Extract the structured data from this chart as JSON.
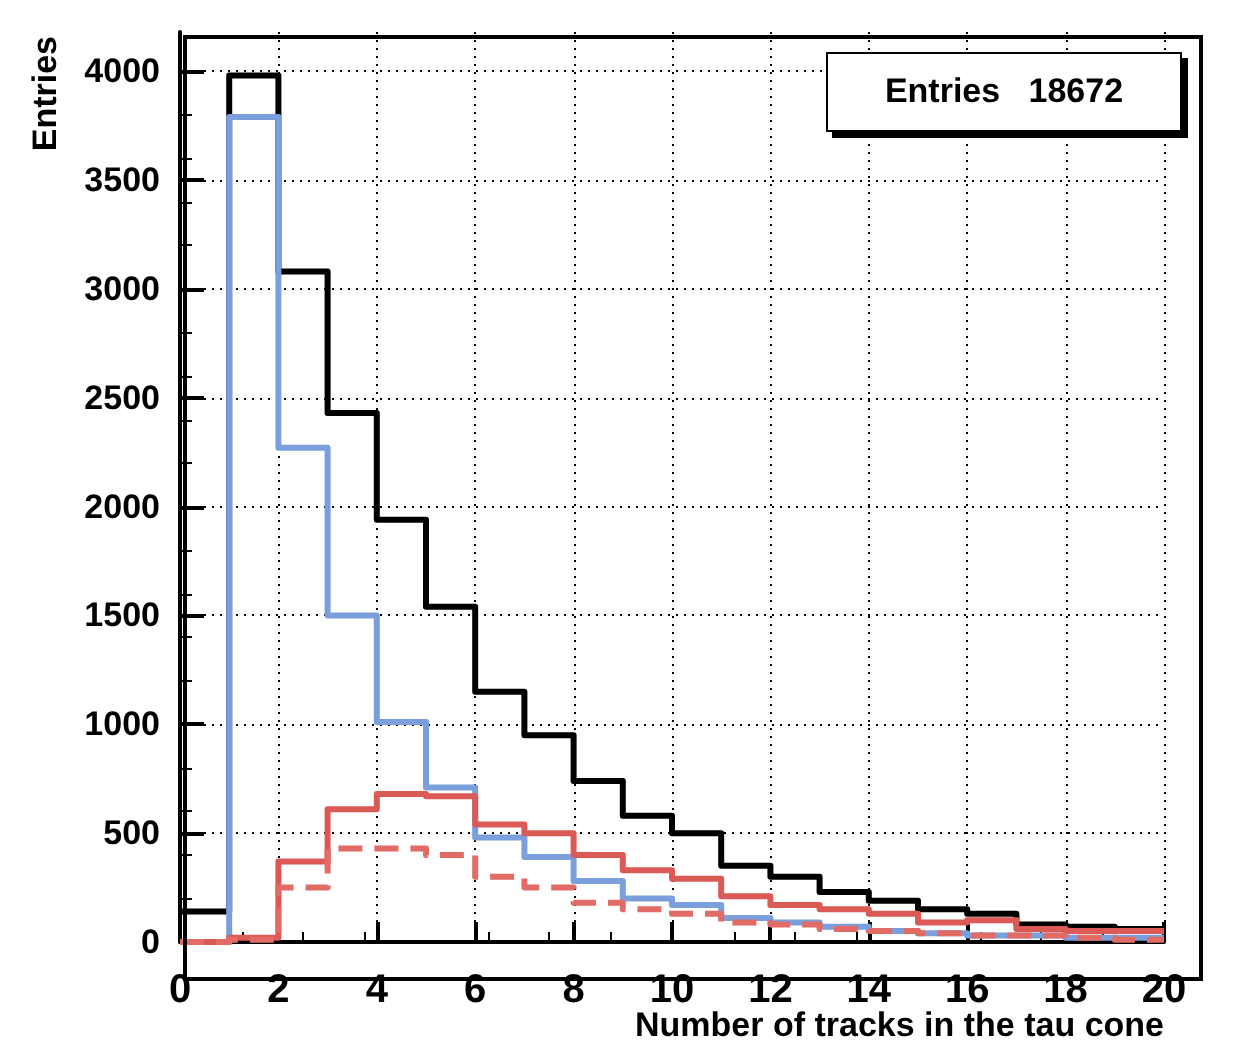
{
  "chart_data": {
    "type": "histogram",
    "xlabel": "Number of tracks in the tau cone",
    "ylabel": "Entries",
    "annotations": [
      "Entries   18672"
    ],
    "bins": [
      0,
      1,
      2,
      3,
      4,
      5,
      6,
      7,
      8,
      9,
      10,
      11,
      12,
      13,
      14,
      15,
      16,
      17,
      18,
      19,
      20
    ],
    "series": [
      {
        "color": "#000000",
        "values": [
          140,
          3980,
          3080,
          2430,
          1940,
          1540,
          1150,
          950,
          740,
          580,
          500,
          350,
          300,
          230,
          190,
          150,
          130,
          80,
          70,
          60
        ]
      },
      {
        "color": "#7b9fdc",
        "values": [
          0,
          3790,
          2270,
          1500,
          1010,
          710,
          480,
          390,
          280,
          200,
          170,
          110,
          90,
          70,
          50,
          40,
          30,
          30,
          20,
          20
        ]
      },
      {
        "color": "#dc5a55",
        "values": [
          0,
          20,
          370,
          610,
          680,
          670,
          540,
          500,
          400,
          330,
          290,
          210,
          170,
          150,
          130,
          90,
          100,
          60,
          50,
          50
        ]
      },
      {
        "color": "#e26b66",
        "line_style": "dashed",
        "values": [
          0,
          10,
          250,
          430,
          430,
          400,
          300,
          250,
          180,
          150,
          130,
          90,
          80,
          60,
          50,
          40,
          30,
          30,
          20,
          10
        ]
      }
    ],
    "xlim": [
      0,
      20
    ],
    "xticks": [
      0,
      2,
      4,
      6,
      8,
      10,
      12,
      14,
      16,
      18,
      20
    ],
    "ylim": [
      0,
      4180
    ],
    "yticks": [
      0,
      500,
      1000,
      1500,
      2000,
      2500,
      3000,
      3500,
      4000
    ],
    "grid": true
  }
}
